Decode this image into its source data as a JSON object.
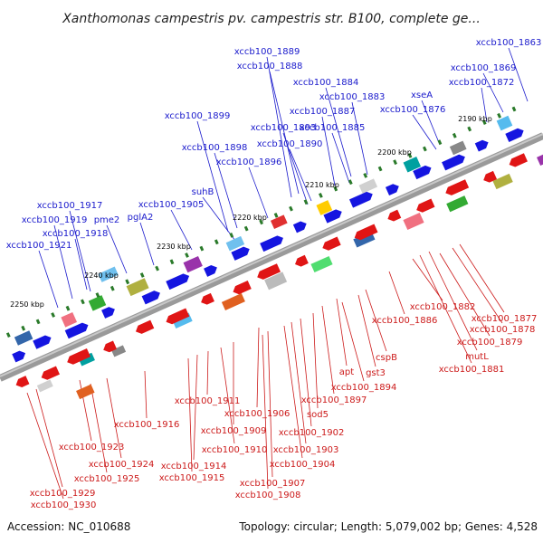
{
  "title": "Xanthomonas campestris pv. campestris str. B100, complete ge...",
  "footer": {
    "accession": "Accession: NC_010688",
    "summary": "Topology: circular; Length: 5,079,002 bp; Genes: 4,528"
  },
  "scale_labels": [
    "2190 kbp",
    "2200 kbp",
    "2210 kbp",
    "2220 kbp",
    "2230 kbp",
    "2240 kbp",
    "2250 kbp"
  ],
  "genes_top": [
    "xccb100_1863",
    "xccb100_1869",
    "xccb100_1872",
    "xseA",
    "xccb100_1876",
    "xccb100_1883",
    "xccb100_1884",
    "xccb100_1885",
    "xccb100_1887",
    "xccb100_1888",
    "xccb100_1889",
    "xccb100_1890",
    "xccb100_1893",
    "xccb100_1896",
    "xccb100_1898",
    "xccb100_1899",
    "suhB",
    "xccb100_1905",
    "pglA2",
    "pme2",
    "xccb100_1917",
    "xccb100_1918",
    "xccb100_1919",
    "xccb100_1921"
  ],
  "genes_bottom": [
    "xccb100_1877",
    "xccb100_1878",
    "xccb100_1879",
    "xccb100_1881",
    "mutL",
    "xccb100_1882",
    "xccb100_1886",
    "cspB",
    "gst3",
    "apt",
    "xccb100_1894",
    "xccb100_1897",
    "sod5",
    "xccb100_1902",
    "xccb100_1903",
    "xccb100_1904",
    "xccb100_1906",
    "xccb100_1907",
    "xccb100_1908",
    "xccb100_1909",
    "xccb100_1910",
    "xccb100_1911",
    "xccb100_1914",
    "xccb100_1915",
    "xccb100_1916",
    "xccb100_1923",
    "xccb100_1924",
    "xccb100_1925",
    "xccb100_1929",
    "xccb100_1930"
  ],
  "colors": {
    "forward_genes": "#1a1acc",
    "reverse_genes": "#cc1a1a",
    "backbone": "#8a8a8a",
    "forward_arrow": "#1515e0",
    "reverse_arrow": "#e01515"
  }
}
